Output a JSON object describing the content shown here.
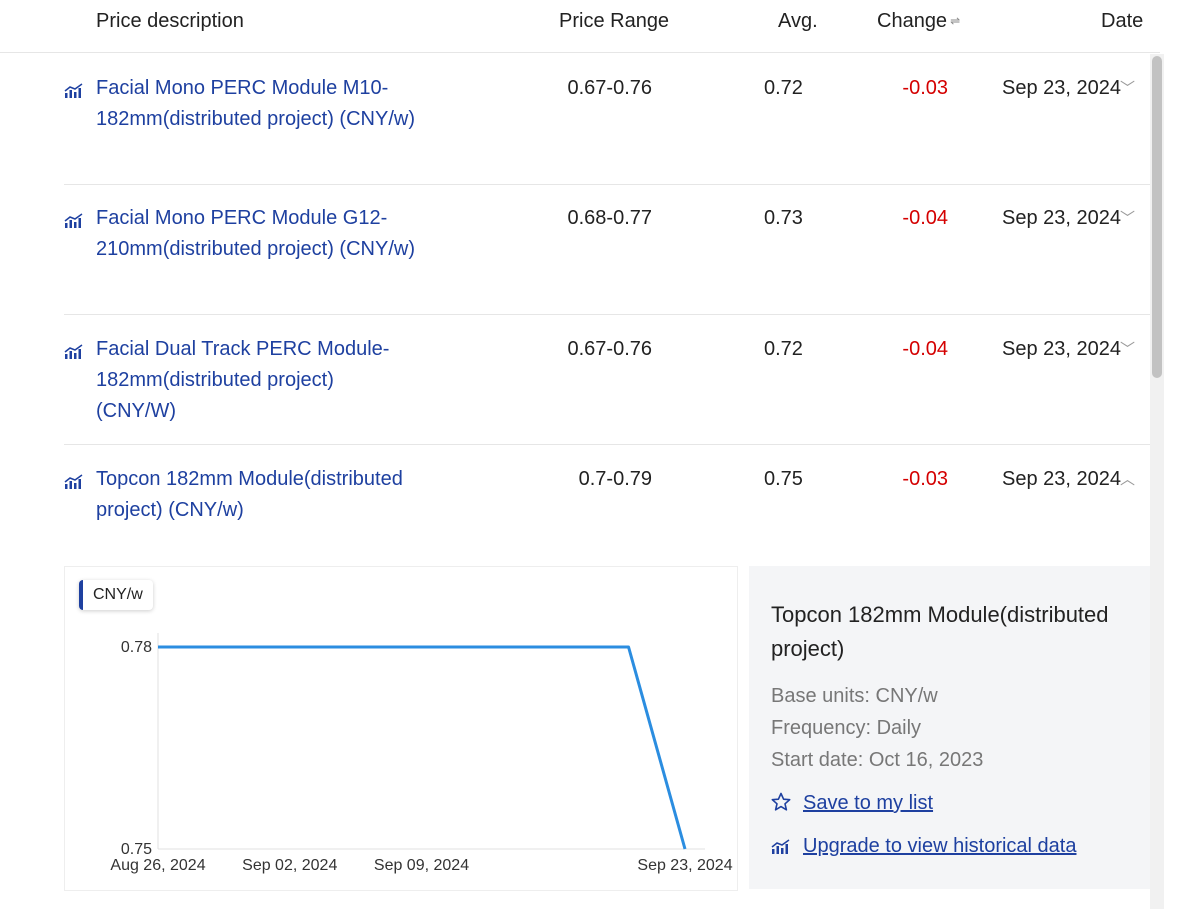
{
  "table": {
    "headers": {
      "description": "Price description",
      "range": "Price Range",
      "avg": "Avg.",
      "change": "Change",
      "date": "Date"
    },
    "rows": [
      {
        "name": "Facial Mono PERC Module M10-182mm(distributed project) (CNY/w)",
        "range": "0.67-0.76",
        "avg": "0.72",
        "change": "-0.03",
        "date": "Sep 23, 2024",
        "expanded": false
      },
      {
        "name": "Facial Mono PERC Module G12-210mm(distributed project) (CNY/w)",
        "range": "0.68-0.77",
        "avg": "0.73",
        "change": "-0.04",
        "date": "Sep 23, 2024",
        "expanded": false
      },
      {
        "name": "Facial Dual Track PERC Module-182mm(distributed project) (CNY/W)",
        "range": "0.67-0.76",
        "avg": "0.72",
        "change": "-0.04",
        "date": "Sep 23, 2024",
        "expanded": false
      },
      {
        "name": "Topcon 182mm Module(distributed project) (CNY/w)",
        "range": "0.7-0.79",
        "avg": "0.75",
        "change": "-0.03",
        "date": "Sep 23, 2024",
        "expanded": true
      }
    ]
  },
  "chart_data": {
    "type": "line",
    "title": "",
    "xlabel": "",
    "ylabel": "",
    "unit_label": "CNY/w",
    "x_ticks": [
      "Aug 26, 2024",
      "Sep 02, 2024",
      "Sep 09, 2024",
      "Sep 23, 2024"
    ],
    "y_ticks": [
      "0.78",
      "0.75"
    ],
    "ylim": [
      0.75,
      0.78
    ],
    "series": [
      {
        "x": [
          "2024-08-26",
          "2024-09-20",
          "2024-09-23"
        ],
        "values": [
          0.78,
          0.78,
          0.75
        ],
        "color": "#2b8de0"
      }
    ],
    "grid": false
  },
  "info": {
    "title": "Topcon 182mm Module(distributed project)",
    "base_units": "Base units: CNY/w",
    "frequency": "Frequency: Daily",
    "start_date": "Start date: Oct 16, 2023",
    "save_link": "Save to my list",
    "upgrade_link": "Upgrade to view historical data"
  },
  "colors": {
    "link": "#1e40a0",
    "negative": "#d40000",
    "line": "#2b8de0"
  },
  "icons": {
    "row": "chart-icon",
    "collapsed": "chevron-down-icon",
    "expanded": "chevron-up-icon",
    "sort": "sort-icon",
    "save": "star-icon",
    "upgrade": "chart-icon"
  }
}
